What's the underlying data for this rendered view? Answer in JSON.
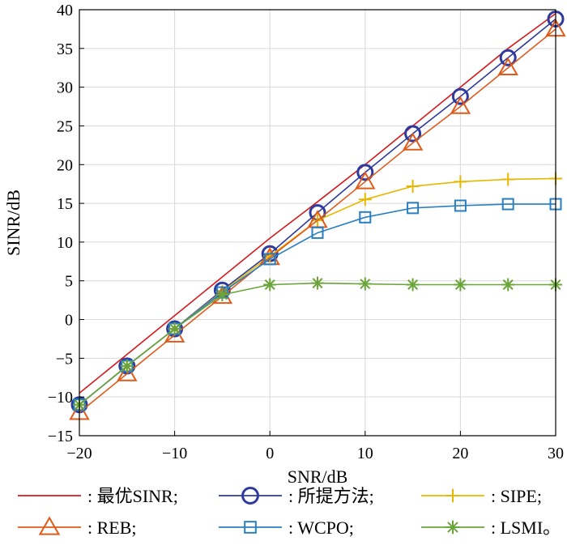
{
  "chart_data": {
    "type": "line",
    "title": "",
    "xlabel": "SNR/dB",
    "ylabel": "SINR/dB",
    "xlim": [
      -20,
      30
    ],
    "ylim": [
      -15,
      40
    ],
    "xticks": [
      -20,
      -10,
      0,
      10,
      20,
      30
    ],
    "yticks": [
      -15,
      -10,
      -5,
      0,
      5,
      10,
      15,
      20,
      25,
      30,
      35,
      40
    ],
    "x": [
      -20,
      -15,
      -10,
      -5,
      0,
      5,
      10,
      15,
      20,
      25,
      30
    ],
    "grid": true,
    "legend_position": "bottom",
    "series": [
      {
        "name": "最优SINR",
        "legend_label": ": 最优SINR;",
        "color": "#d7191c",
        "marker": "none",
        "values": [
          -9.5,
          -4.5,
          0.5,
          5.5,
          10.5,
          15.2,
          20,
          25,
          30,
          35,
          39.5
        ]
      },
      {
        "name": "所提方法",
        "legend_label": ": 所提方法;",
        "color": "#2e3a9e",
        "marker": "circle",
        "values": [
          -11,
          -6,
          -1.2,
          3.8,
          8.5,
          13.8,
          19,
          24,
          28.8,
          33.8,
          38.8
        ]
      },
      {
        "name": "SIPE",
        "legend_label": ": SIPE;",
        "color": "#e6b800",
        "marker": "plus",
        "values": [
          -11,
          -6,
          -1.2,
          3.6,
          8.2,
          12.8,
          15.5,
          17.2,
          17.8,
          18.1,
          18.2
        ]
      },
      {
        "name": "REB",
        "legend_label": ": REB;",
        "color": "#e05a1a",
        "marker": "triangle",
        "values": [
          -12,
          -7,
          -2,
          3,
          8,
          12.8,
          17.8,
          22.8,
          27.5,
          32.5,
          37.5
        ]
      },
      {
        "name": "WCPO",
        "legend_label": ": WCPO;",
        "color": "#2a7fc1",
        "marker": "square",
        "values": [
          -11,
          -6,
          -1.2,
          3.5,
          7.8,
          11.2,
          13.2,
          14.4,
          14.7,
          14.9,
          14.9
        ]
      },
      {
        "name": "LSMI",
        "legend_label": ": LSMI。",
        "color": "#6aa53a",
        "marker": "asterisk",
        "values": [
          -11,
          -6,
          -1.2,
          3.2,
          4.5,
          4.7,
          4.6,
          4.5,
          4.5,
          4.5,
          4.5
        ]
      }
    ]
  }
}
